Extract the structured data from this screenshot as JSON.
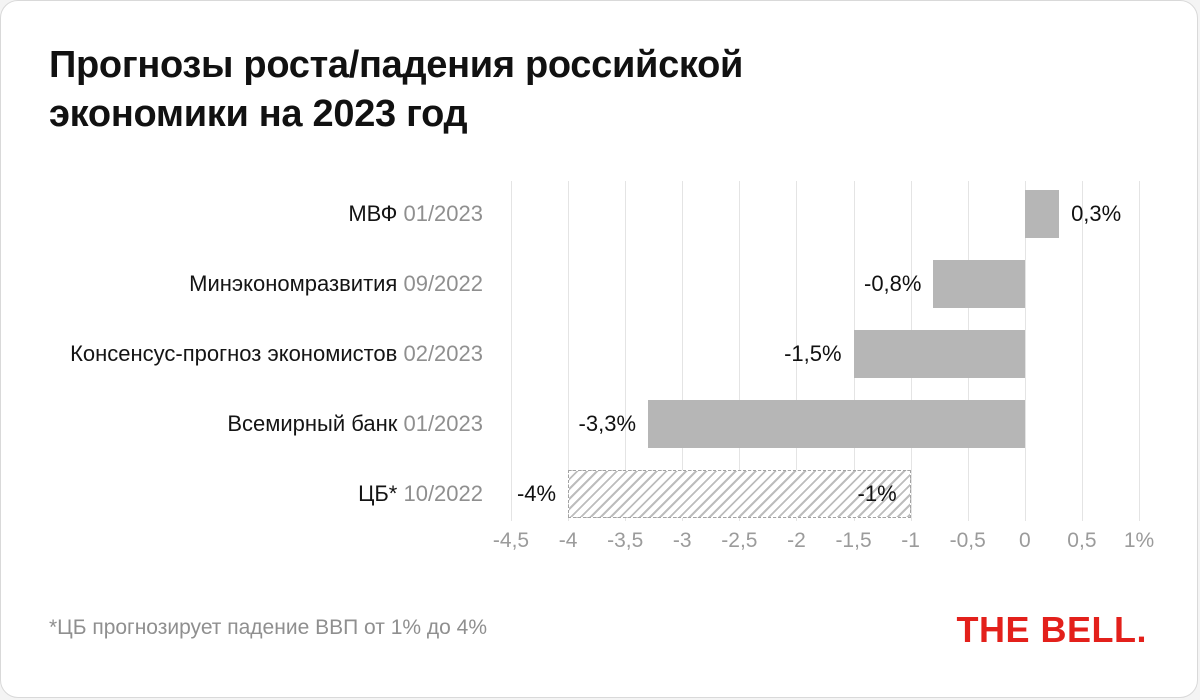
{
  "card": {
    "title_line1": "Прогнозы роста/падения российской",
    "title_line2": "экономики на 2023 год",
    "footnote": "*ЦБ прогнозирует падение ВВП от 1% до 4%",
    "logo": "THE BELL."
  },
  "colors": {
    "bar": "#b6b6b6",
    "grid": "#e4e4e4",
    "axis_text": "#9b9b9b",
    "category_date": "#8f8f8f",
    "logo_red": "#e3201b"
  },
  "chart_data": {
    "type": "bar",
    "orientation": "horizontal",
    "title": "Прогнозы роста/падения российской экономики на 2023 год",
    "xlabel": "",
    "ylabel": "",
    "xlim": [
      -4.5,
      1
    ],
    "grid": true,
    "x_ticks": [
      -4.5,
      -4,
      -3.5,
      -3,
      -2.5,
      -2,
      -1.5,
      -1,
      -0.5,
      0,
      0.5,
      1
    ],
    "x_tick_labels": [
      "-4,5",
      "-4",
      "-3,5",
      "-3",
      "-2,5",
      "-2",
      "-1,5",
      "-1",
      "-0,5",
      "0",
      "0,5",
      "1%"
    ],
    "rows": [
      {
        "source": "МВФ",
        "date": "01/2023",
        "from": 0,
        "to": 0.3,
        "value": 0.3,
        "label": "0,3%",
        "label_side": "right",
        "hatched": false
      },
      {
        "source": "Минэкономразвития",
        "date": "09/2022",
        "from": -0.8,
        "to": 0,
        "value": -0.8,
        "label": "-0,8%",
        "label_side": "left",
        "hatched": false
      },
      {
        "source": "Консенсус-прогноз экономистов",
        "date": "02/2023",
        "from": -1.5,
        "to": 0,
        "value": -1.5,
        "label": "-1,5%",
        "label_side": "left",
        "hatched": false
      },
      {
        "source": "Всемирный банк",
        "date": "01/2023",
        "from": -3.3,
        "to": 0,
        "value": -3.3,
        "label": "-3,3%",
        "label_side": "left",
        "hatched": false
      },
      {
        "source": "ЦБ*",
        "date": "10/2022",
        "from": -4,
        "to": -1,
        "label": "-4%",
        "label_side": "left",
        "label_inside": "-1%",
        "hatched": true
      }
    ]
  }
}
